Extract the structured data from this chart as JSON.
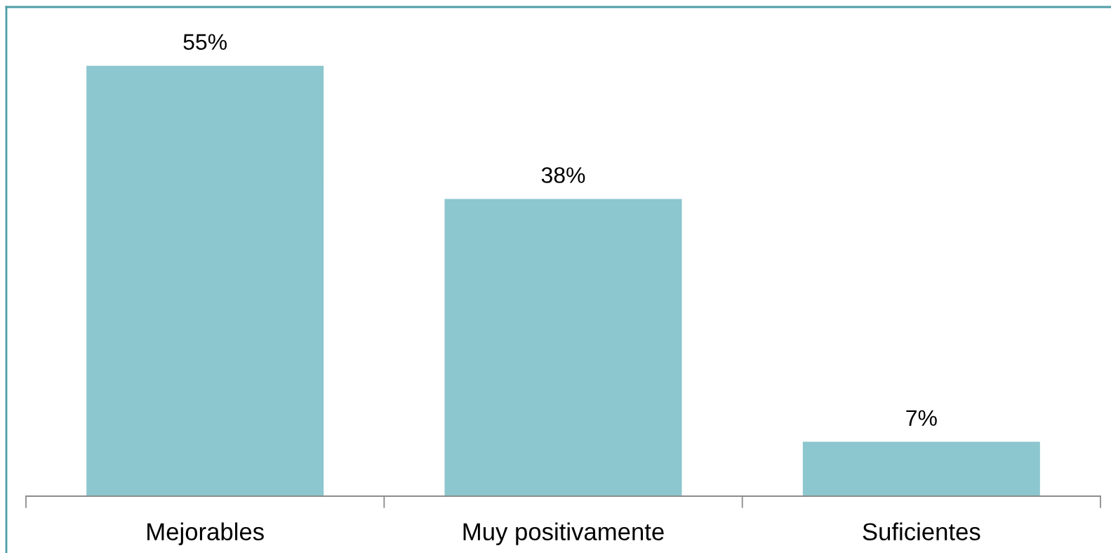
{
  "chart_data": {
    "type": "bar",
    "categories": [
      "Mejorables",
      "Muy positivamente",
      "Suficientes"
    ],
    "values": [
      55,
      38,
      7
    ],
    "value_labels": [
      "55%",
      "38%",
      "7%"
    ],
    "color": "#8cc6ce",
    "tick_labels": "x"
  }
}
